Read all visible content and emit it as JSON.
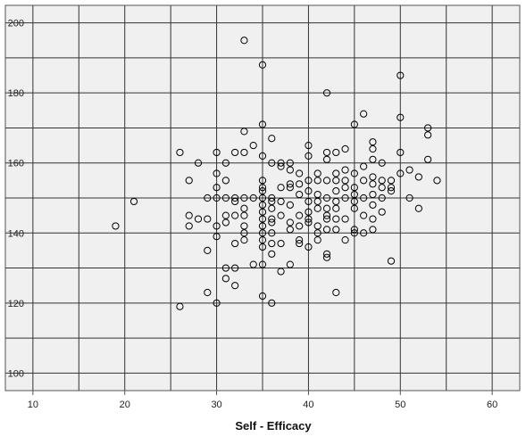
{
  "chart_data": {
    "type": "scatter",
    "title": "",
    "xlabel": "Self - Efficacy",
    "ylabel": "",
    "xlim": [
      7,
      63
    ],
    "ylim": [
      95,
      205
    ],
    "x_ticks": [
      10,
      20,
      30,
      40,
      50,
      60
    ],
    "y_ticks": [
      100,
      120,
      140,
      160,
      180,
      200
    ],
    "x_grid": [
      15,
      25,
      35,
      45,
      55
    ],
    "y_grid": [
      110,
      130,
      150,
      170,
      190
    ],
    "grid": true,
    "background_color": "#f0f0f0",
    "marker": "hollow-circle",
    "marker_color": "#000000",
    "series": [
      {
        "points": [
          [
            19,
            142
          ],
          [
            21,
            149
          ],
          [
            26,
            163
          ],
          [
            26,
            119
          ],
          [
            27,
            155
          ],
          [
            27,
            145
          ],
          [
            27,
            142
          ],
          [
            28,
            160
          ],
          [
            28,
            144
          ],
          [
            29,
            150
          ],
          [
            29,
            144
          ],
          [
            29,
            135
          ],
          [
            29,
            123
          ],
          [
            30,
            163
          ],
          [
            30,
            157
          ],
          [
            30,
            153
          ],
          [
            30,
            150
          ],
          [
            30,
            142
          ],
          [
            30,
            139
          ],
          [
            30,
            120
          ],
          [
            31,
            160
          ],
          [
            31,
            155
          ],
          [
            31,
            150
          ],
          [
            31,
            145
          ],
          [
            31,
            143
          ],
          [
            31,
            130
          ],
          [
            31,
            127
          ],
          [
            32,
            163
          ],
          [
            32,
            150
          ],
          [
            32,
            149
          ],
          [
            32,
            145
          ],
          [
            32,
            137
          ],
          [
            32,
            130
          ],
          [
            32,
            125
          ],
          [
            33,
            195
          ],
          [
            33,
            169
          ],
          [
            33,
            163
          ],
          [
            33,
            150
          ],
          [
            33,
            147
          ],
          [
            33,
            145
          ],
          [
            33,
            142
          ],
          [
            33,
            140
          ],
          [
            33,
            138
          ],
          [
            34,
            165
          ],
          [
            34,
            150
          ],
          [
            34,
            131
          ],
          [
            35,
            188
          ],
          [
            35,
            171
          ],
          [
            35,
            162
          ],
          [
            35,
            155
          ],
          [
            35,
            153
          ],
          [
            35,
            152
          ],
          [
            35,
            150
          ],
          [
            35,
            148
          ],
          [
            35,
            146
          ],
          [
            35,
            144
          ],
          [
            35,
            142
          ],
          [
            35,
            140
          ],
          [
            35,
            138
          ],
          [
            35,
            136
          ],
          [
            35,
            131
          ],
          [
            35,
            122
          ],
          [
            36,
            167
          ],
          [
            36,
            160
          ],
          [
            36,
            150
          ],
          [
            36,
            149
          ],
          [
            36,
            147
          ],
          [
            36,
            144
          ],
          [
            36,
            143
          ],
          [
            36,
            140
          ],
          [
            36,
            137
          ],
          [
            36,
            134
          ],
          [
            36,
            120
          ],
          [
            37,
            160
          ],
          [
            37,
            159
          ],
          [
            37,
            153
          ],
          [
            37,
            149
          ],
          [
            37,
            145
          ],
          [
            37,
            137
          ],
          [
            37,
            129
          ],
          [
            38,
            160
          ],
          [
            38,
            158
          ],
          [
            38,
            154
          ],
          [
            38,
            153
          ],
          [
            38,
            148
          ],
          [
            38,
            143
          ],
          [
            38,
            141
          ],
          [
            38,
            131
          ],
          [
            39,
            157
          ],
          [
            39,
            154
          ],
          [
            39,
            151
          ],
          [
            39,
            145
          ],
          [
            39,
            142
          ],
          [
            39,
            138
          ],
          [
            39,
            137
          ],
          [
            40,
            165
          ],
          [
            40,
            162
          ],
          [
            40,
            155
          ],
          [
            40,
            152
          ],
          [
            40,
            149
          ],
          [
            40,
            146
          ],
          [
            40,
            144
          ],
          [
            40,
            143
          ],
          [
            40,
            136
          ],
          [
            41,
            157
          ],
          [
            41,
            155
          ],
          [
            41,
            151
          ],
          [
            41,
            149
          ],
          [
            41,
            147
          ],
          [
            41,
            142
          ],
          [
            41,
            140
          ],
          [
            41,
            138
          ],
          [
            42,
            180
          ],
          [
            42,
            163
          ],
          [
            42,
            161
          ],
          [
            42,
            155
          ],
          [
            42,
            150
          ],
          [
            42,
            147
          ],
          [
            42,
            145
          ],
          [
            42,
            144
          ],
          [
            42,
            141
          ],
          [
            42,
            134
          ],
          [
            42,
            133
          ],
          [
            43,
            163
          ],
          [
            43,
            157
          ],
          [
            43,
            155
          ],
          [
            43,
            152
          ],
          [
            43,
            149
          ],
          [
            43,
            147
          ],
          [
            43,
            144
          ],
          [
            43,
            141
          ],
          [
            43,
            123
          ],
          [
            44,
            164
          ],
          [
            44,
            158
          ],
          [
            44,
            155
          ],
          [
            44,
            153
          ],
          [
            44,
            150
          ],
          [
            44,
            144
          ],
          [
            44,
            138
          ],
          [
            45,
            171
          ],
          [
            45,
            157
          ],
          [
            45,
            153
          ],
          [
            45,
            151
          ],
          [
            45,
            149
          ],
          [
            45,
            147
          ],
          [
            45,
            141
          ],
          [
            45,
            140
          ],
          [
            46,
            174
          ],
          [
            46,
            159
          ],
          [
            46,
            155
          ],
          [
            46,
            150
          ],
          [
            46,
            145
          ],
          [
            46,
            140
          ],
          [
            47,
            166
          ],
          [
            47,
            164
          ],
          [
            47,
            161
          ],
          [
            47,
            156
          ],
          [
            47,
            154
          ],
          [
            47,
            151
          ],
          [
            47,
            148
          ],
          [
            47,
            144
          ],
          [
            47,
            141
          ],
          [
            48,
            160
          ],
          [
            48,
            155
          ],
          [
            48,
            153
          ],
          [
            48,
            150
          ],
          [
            48,
            146
          ],
          [
            49,
            155
          ],
          [
            49,
            153
          ],
          [
            49,
            152
          ],
          [
            49,
            132
          ],
          [
            50,
            185
          ],
          [
            50,
            173
          ],
          [
            50,
            163
          ],
          [
            50,
            157
          ],
          [
            51,
            158
          ],
          [
            51,
            150
          ],
          [
            52,
            156
          ],
          [
            52,
            147
          ],
          [
            53,
            170
          ],
          [
            53,
            168
          ],
          [
            53,
            161
          ],
          [
            54,
            155
          ]
        ]
      }
    ]
  }
}
